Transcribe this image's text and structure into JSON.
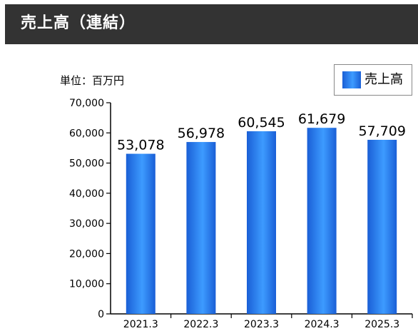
{
  "header": {
    "title": "売上高（連結）"
  },
  "unit_label": "単位：百万円",
  "colors": {
    "header_bg": "#333333",
    "bar_dark": "#1a5fd6",
    "bar_light": "#3d9bff",
    "axis": "#000000"
  },
  "chart_data": {
    "type": "bar",
    "title": "",
    "xlabel": "",
    "ylabel": "",
    "categories": [
      "2021.3",
      "2022.3",
      "2023.3",
      "2024.3",
      "2025.3"
    ],
    "series": [
      {
        "name": "売上高",
        "values": [
          53078,
          56978,
          60545,
          61679,
          57709
        ]
      }
    ],
    "data_labels": [
      "53,078",
      "56,978",
      "60,545",
      "61,679",
      "57,709"
    ],
    "ylim": [
      0,
      70000
    ],
    "yticks": [
      0,
      10000,
      20000,
      30000,
      40000,
      50000,
      60000,
      70000
    ],
    "ytick_labels": [
      "0",
      "10,000",
      "20,000",
      "30,000",
      "40,000",
      "50,000",
      "60,000",
      "70,000"
    ],
    "legend": {
      "position": "top-right"
    },
    "grid": false
  }
}
